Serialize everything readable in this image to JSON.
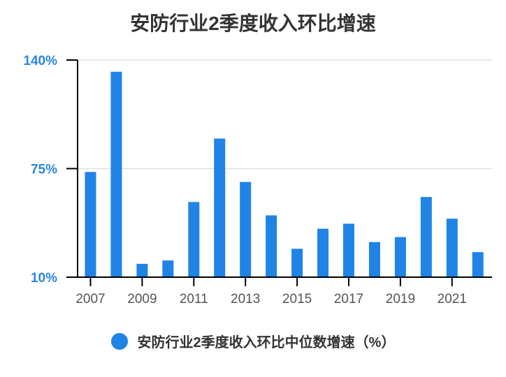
{
  "chart_data": {
    "type": "bar",
    "title": "安防行业2季度收入环比增速",
    "categories": [
      "2007",
      "2008",
      "2009",
      "2010",
      "2011",
      "2012",
      "2013",
      "2014",
      "2015",
      "2016",
      "2017",
      "2018",
      "2019",
      "2020",
      "2021",
      "2022"
    ],
    "x_tick_labels": [
      "2007",
      "2009",
      "2011",
      "2013",
      "2015",
      "2017",
      "2019",
      "2021"
    ],
    "series": [
      {
        "name": "安防行业2季度收入环比中位数增速（%）",
        "values": [
          73,
          133,
          18,
          20,
          55,
          93,
          67,
          47,
          27,
          39,
          42,
          31,
          34,
          58,
          45,
          25
        ]
      }
    ],
    "y_ticks": [
      10,
      75,
      140
    ],
    "y_tick_labels": [
      "10%",
      "75%",
      "140%"
    ],
    "ylim": [
      10,
      140
    ],
    "grid": true,
    "legend_position": "bottom",
    "bar_color": "#1f84e6",
    "tick_color": "#2c86e0"
  }
}
